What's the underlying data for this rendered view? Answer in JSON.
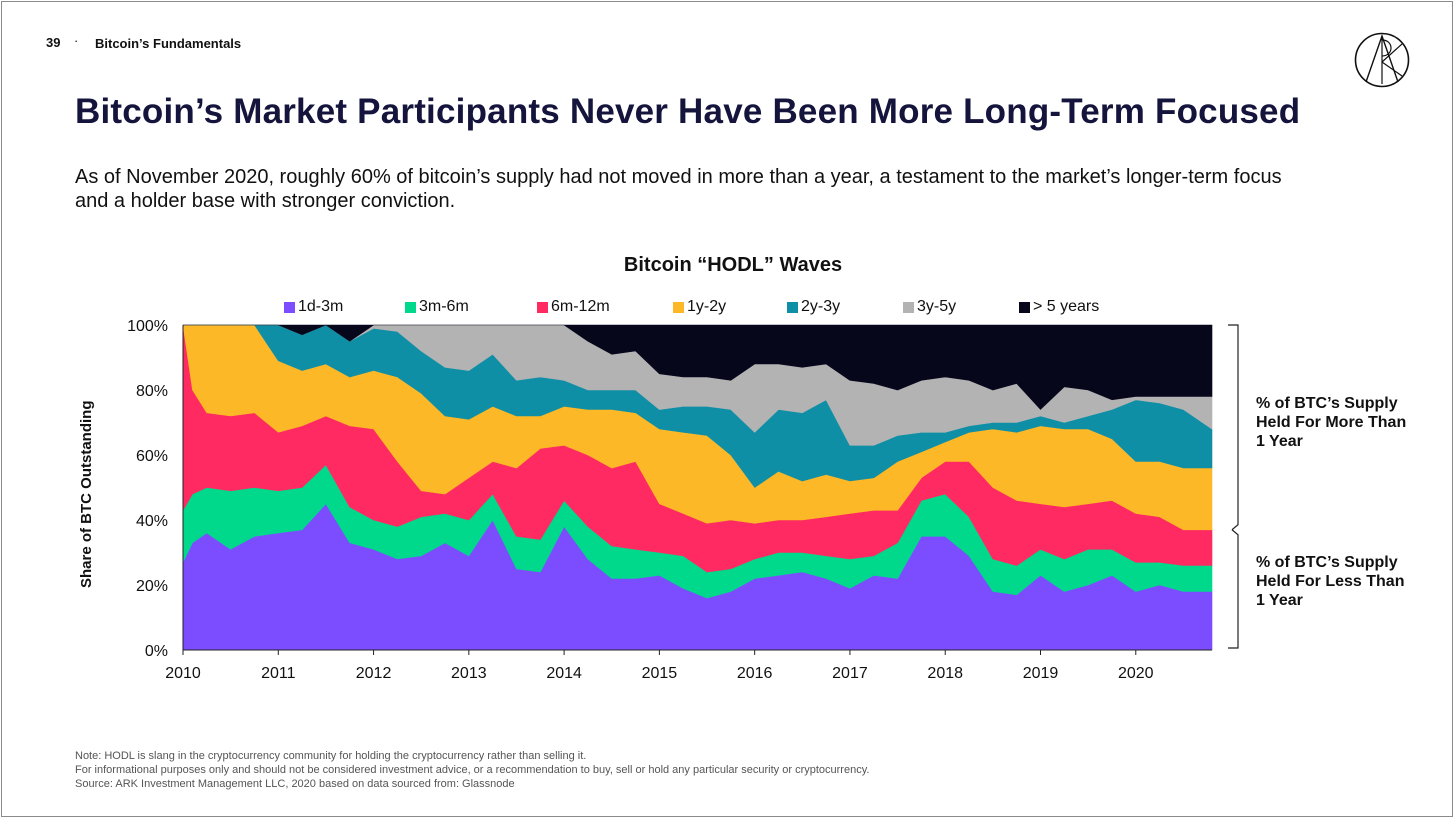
{
  "header": {
    "page_number": "39",
    "separator": "·",
    "section": "Bitcoin’s Fundamentals",
    "logo_icon": "ark-logo-icon"
  },
  "title": "Bitcoin’s Market Participants Never Have Been More Long-Term Focused",
  "subtitle": "As of November 2020, roughly 60% of bitcoin’s supply had not moved in more than a year, a testament to the market’s longer-term focus and a holder base with stronger conviction.",
  "chart_data": {
    "type": "area",
    "stacked": true,
    "title": "Bitcoin “HODL” Waves",
    "ylabel": "Share of BTC Outstanding",
    "xlabel": "",
    "xlim": [
      2010,
      2020.8
    ],
    "ylim": [
      0,
      100
    ],
    "x_ticks": [
      "2010",
      "2011",
      "2012",
      "2013",
      "2014",
      "2015",
      "2016",
      "2017",
      "2018",
      "2019",
      "2020"
    ],
    "y_ticks": [
      "0%",
      "20%",
      "40%",
      "60%",
      "80%",
      "100%"
    ],
    "legend_position": "top",
    "x": [
      2010.0,
      2010.1,
      2010.25,
      2010.5,
      2010.75,
      2011.0,
      2011.25,
      2011.5,
      2011.75,
      2012.0,
      2012.25,
      2012.5,
      2012.75,
      2013.0,
      2013.25,
      2013.5,
      2013.75,
      2014.0,
      2014.25,
      2014.5,
      2014.75,
      2015.0,
      2015.25,
      2015.5,
      2015.75,
      2016.0,
      2016.25,
      2016.5,
      2016.75,
      2017.0,
      2017.25,
      2017.5,
      2017.75,
      2018.0,
      2018.25,
      2018.5,
      2018.75,
      2019.0,
      2019.25,
      2019.5,
      2019.75,
      2020.0,
      2020.25,
      2020.5,
      2020.8
    ],
    "series": [
      {
        "name": "1d-3m",
        "color": "#7b4dff",
        "values": [
          27,
          33,
          36,
          31,
          35,
          36,
          37,
          45,
          33,
          31,
          28,
          29,
          33,
          29,
          40,
          25,
          24,
          38,
          28,
          22,
          22,
          23,
          19,
          16,
          18,
          22,
          23,
          24,
          22,
          19,
          23,
          22,
          35,
          35,
          29,
          18,
          17,
          23,
          18,
          20,
          23,
          18,
          20,
          18,
          18
        ]
      },
      {
        "name": "3m-6m",
        "color": "#00d98b",
        "values": [
          16,
          15,
          14,
          18,
          15,
          13,
          13,
          12,
          11,
          9,
          10,
          12,
          9,
          11,
          8,
          10,
          10,
          8,
          10,
          10,
          9,
          7,
          10,
          8,
          7,
          6,
          7,
          6,
          7,
          9,
          6,
          11,
          11,
          13,
          12,
          10,
          9,
          8,
          10,
          11,
          8,
          9,
          7,
          8,
          8
        ]
      },
      {
        "name": "6m-12m",
        "color": "#ff2a61",
        "values": [
          57,
          32,
          23,
          23,
          23,
          18,
          19,
          15,
          25,
          28,
          20,
          8,
          6,
          13,
          10,
          21,
          28,
          17,
          22,
          24,
          27,
          15,
          13,
          15,
          15,
          11,
          10,
          10,
          12,
          14,
          14,
          10,
          7,
          10,
          17,
          22,
          20,
          14,
          16,
          14,
          15,
          15,
          14,
          11,
          11
        ]
      },
      {
        "name": "1y-2y",
        "color": "#fdb827",
        "values": [
          0,
          20,
          27,
          28,
          27,
          22,
          17,
          16,
          15,
          18,
          26,
          30,
          24,
          18,
          17,
          16,
          10,
          12,
          14,
          18,
          15,
          23,
          25,
          27,
          20,
          11,
          15,
          12,
          13,
          10,
          10,
          15,
          8,
          6,
          9,
          18,
          21,
          24,
          24,
          23,
          19,
          16,
          17,
          19,
          19
        ]
      },
      {
        "name": "2y-3y",
        "color": "#0f8fa6",
        "values": [
          0,
          0,
          0,
          0,
          0,
          11,
          11,
          12,
          11,
          13,
          14,
          13,
          15,
          15,
          16,
          11,
          12,
          8,
          6,
          6,
          7,
          6,
          8,
          9,
          14,
          17,
          19,
          21,
          23,
          11,
          10,
          8,
          6,
          3,
          2,
          2,
          3,
          3,
          2,
          4,
          9,
          19,
          18,
          18,
          12
        ]
      },
      {
        "name": "3y-5y",
        "color": "#b3b3b3",
        "values": [
          0,
          0,
          0,
          0,
          0,
          0,
          0,
          0,
          0,
          1,
          2,
          8,
          13,
          14,
          9,
          17,
          16,
          17,
          15,
          11,
          12,
          11,
          9,
          9,
          9,
          21,
          14,
          14,
          11,
          20,
          19,
          14,
          16,
          17,
          14,
          10,
          12,
          2,
          11,
          8,
          3,
          1,
          2,
          4,
          10
        ]
      },
      {
        "name": "> 5 years",
        "color": "#07071c",
        "values": [
          0,
          0,
          0,
          0,
          0,
          0,
          3,
          0,
          5,
          0,
          0,
          0,
          0,
          0,
          0,
          0,
          0,
          0,
          5,
          9,
          8,
          15,
          16,
          16,
          17,
          12,
          12,
          13,
          12,
          17,
          18,
          20,
          17,
          16,
          17,
          20,
          18,
          26,
          19,
          20,
          23,
          22,
          22,
          22,
          22
        ]
      }
    ],
    "annotations": [
      "% of BTC’s Supply\n Held For More Than\n1 Year",
      "% of BTC’s Supply\nHeld For Less Than\n1 Year"
    ]
  },
  "notes": [
    "Note: HODL is slang in the cryptocurrency community for holding the cryptocurrency rather than selling it.",
    "For informational purposes only and should not be considered investment advice, or a recommendation to buy, sell or hold any particular security or cryptocurrency.",
    "Source: ARK Investment Management LLC, 2020 based on data sourced from: Glassnode"
  ]
}
